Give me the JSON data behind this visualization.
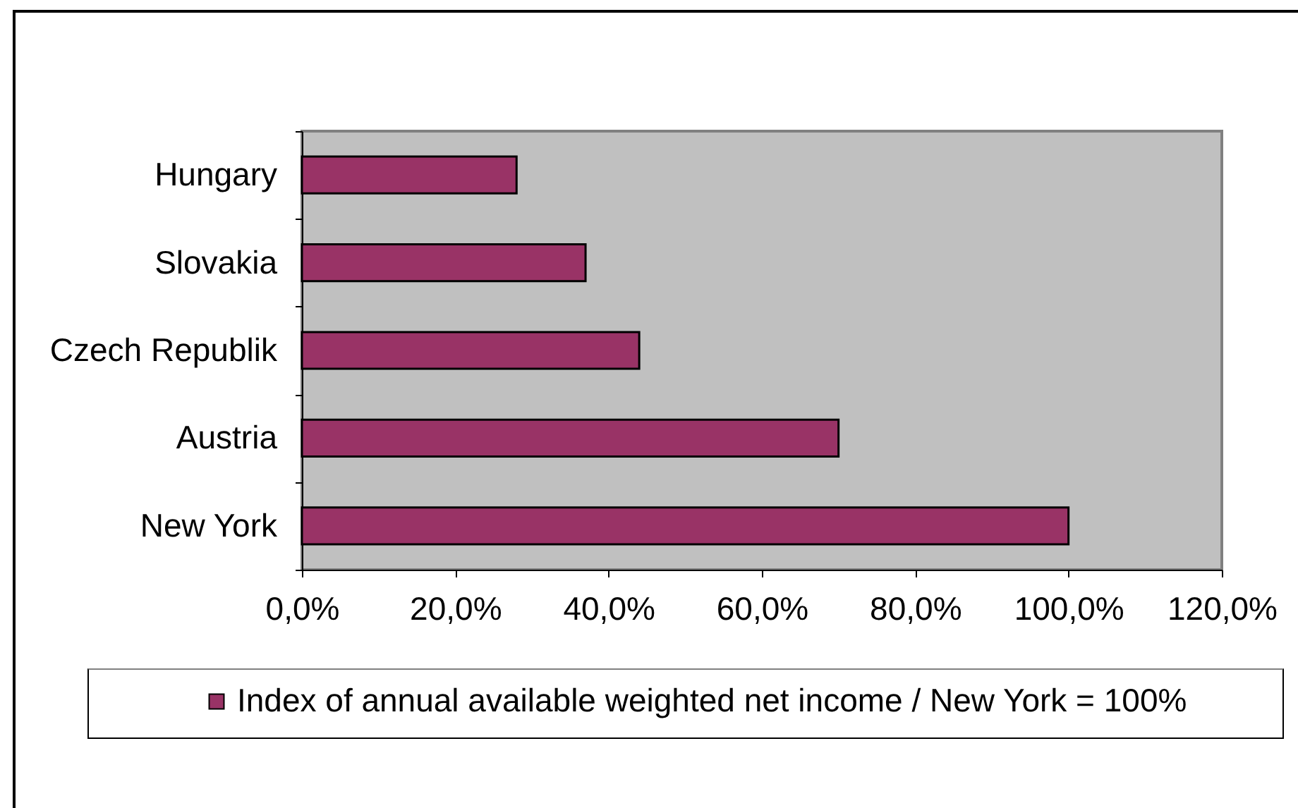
{
  "chart_data": {
    "type": "bar",
    "orientation": "horizontal",
    "categories": [
      "Hungary",
      "Slovakia",
      "Czech Republik",
      "Austria",
      "New York"
    ],
    "series": [
      {
        "name": "Index of annual available weighted net income / New York = 100%",
        "color": "#993366",
        "values": [
          28,
          37,
          44,
          70,
          100
        ]
      }
    ],
    "xlim": [
      0,
      120
    ],
    "xticks": [
      {
        "value": 0,
        "label": "0,0%"
      },
      {
        "value": 20,
        "label": "20,0%"
      },
      {
        "value": 40,
        "label": "40,0%"
      },
      {
        "value": 60,
        "label": "60,0%"
      },
      {
        "value": 80,
        "label": "80,0%"
      },
      {
        "value": 100,
        "label": "100,0%"
      },
      {
        "value": 120,
        "label": "120,0%"
      }
    ],
    "legend": "bottom"
  }
}
